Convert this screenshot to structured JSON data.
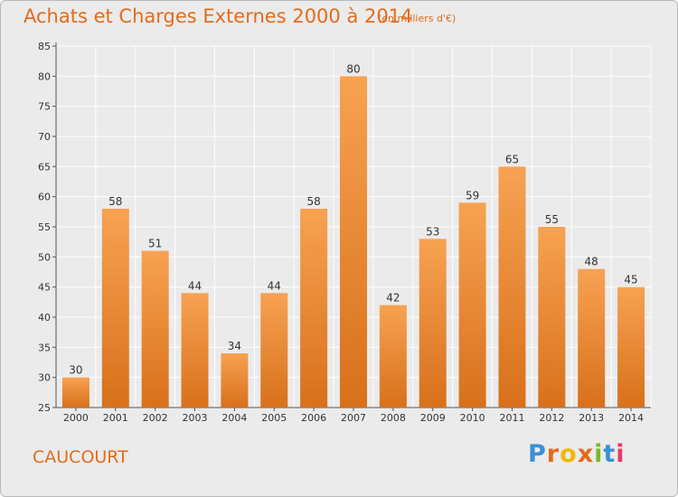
{
  "header": {
    "title": "Achats et Charges Externes 2000 à 2014",
    "subtitle": "(en milliers d'€)"
  },
  "footer": {
    "commune": "CAUCOURT",
    "logo_text": "Proxiti"
  },
  "colors": {
    "accent": "#e36b1c",
    "bar_top": "#f7a252",
    "bar_bottom": "#d8701b",
    "background": "#ebebeb",
    "grid": "#ffffff"
  },
  "chart_data": {
    "type": "bar",
    "title": "Achats et Charges Externes 2000 à 2014",
    "subtitle": "(en milliers d'€)",
    "categories": [
      "2000",
      "2001",
      "2002",
      "2003",
      "2004",
      "2005",
      "2006",
      "2007",
      "2008",
      "2009",
      "2010",
      "2011",
      "2012",
      "2013",
      "2014"
    ],
    "values": [
      30,
      58,
      51,
      44,
      34,
      44,
      58,
      80,
      42,
      53,
      59,
      65,
      55,
      48,
      45
    ],
    "ylim": [
      25,
      85
    ],
    "yticks": [
      25,
      30,
      35,
      40,
      45,
      50,
      55,
      60,
      65,
      70,
      75,
      80,
      85
    ],
    "grid": true,
    "data_labels": true
  }
}
